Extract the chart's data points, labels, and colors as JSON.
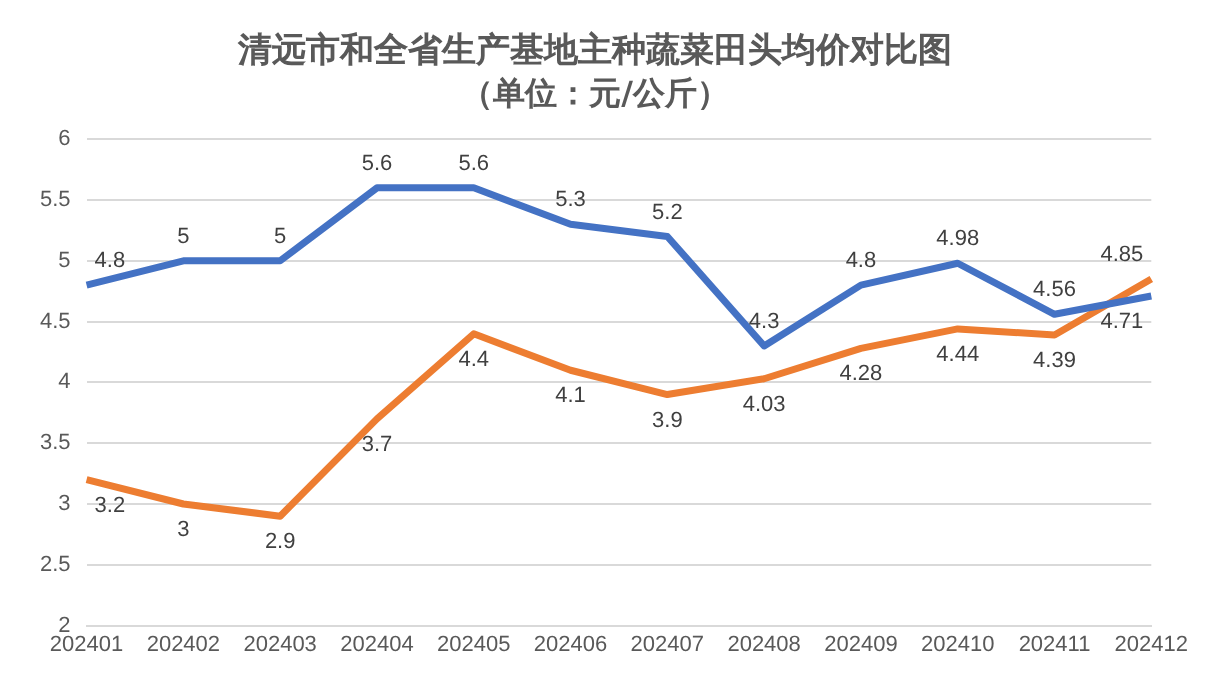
{
  "chart_data": {
    "type": "line",
    "title": "清远市和全省生产基地主种蔬菜田头均价对比图",
    "subtitle": "（单位：元/公斤）",
    "categories": [
      "202401",
      "202402",
      "202403",
      "202404",
      "202405",
      "202406",
      "202407",
      "202408",
      "202409",
      "202410",
      "202411",
      "202412"
    ],
    "series": [
      {
        "color": "#4472c4",
        "values": [
          4.8,
          5,
          5,
          5.6,
          5.6,
          5.3,
          5.2,
          4.3,
          4.8,
          4.98,
          4.56,
          4.71
        ]
      },
      {
        "color": "#ed7d31",
        "values": [
          3.2,
          3,
          2.9,
          3.7,
          4.4,
          4.1,
          3.9,
          4.03,
          4.28,
          4.44,
          4.39,
          4.85
        ]
      }
    ],
    "ylim": [
      2,
      6
    ],
    "yticks": [
      2,
      2.5,
      3,
      3.5,
      4,
      4.5,
      5,
      5.5,
      6
    ],
    "grid": "y",
    "legend": false,
    "marker": "none",
    "line_style": "solid",
    "data_labels": true
  }
}
